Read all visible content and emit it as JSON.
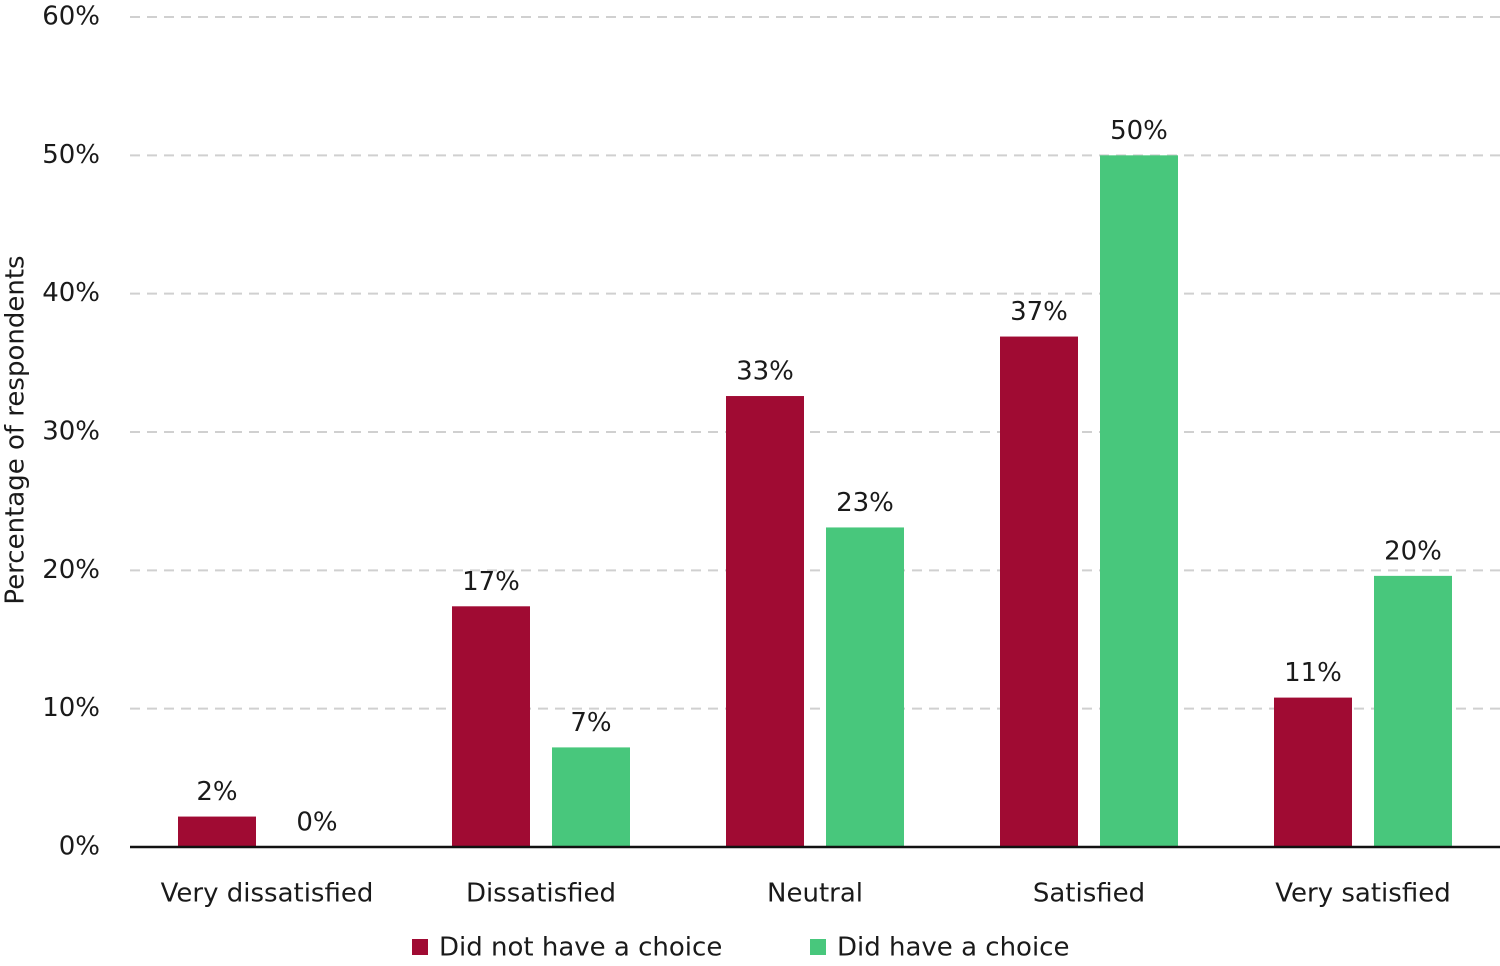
{
  "chart_data": {
    "type": "bar",
    "y_label": "Percentage of respondents",
    "categories": [
      "Very dissatisfied",
      "Dissatisfied",
      "Neutral",
      "Satisfied",
      "Very satisfied"
    ],
    "series": [
      {
        "name": "Did not have a choice",
        "color": "#a00b33",
        "values": [
          2.2,
          17.4,
          32.6,
          36.9,
          10.8
        ],
        "value_labels": [
          "2%",
          "17%",
          "33%",
          "37%",
          "11%"
        ]
      },
      {
        "name": "Did have a choice",
        "color": "#48c77c",
        "values": [
          0,
          7.2,
          23.1,
          50,
          19.6
        ],
        "value_labels": [
          "0%",
          "7%",
          "23%",
          "50%",
          "20%"
        ]
      }
    ],
    "ylim": [
      0,
      60
    ],
    "yticks": [
      {
        "value": 0,
        "label": "0%"
      },
      {
        "value": 10,
        "label": "10%"
      },
      {
        "value": 20,
        "label": "20%"
      },
      {
        "value": 30,
        "label": "30%"
      },
      {
        "value": 40,
        "label": "40%"
      },
      {
        "value": 50,
        "label": "50%"
      },
      {
        "value": 60,
        "label": "60%"
      }
    ],
    "grid": true,
    "legend": "bottom"
  }
}
